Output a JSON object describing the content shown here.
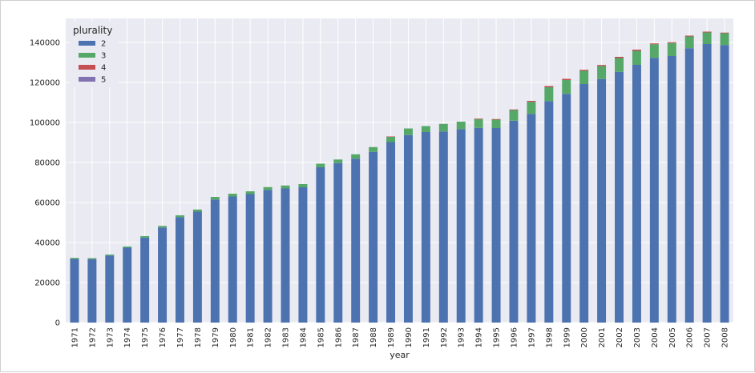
{
  "chart_data": {
    "type": "bar",
    "stacked": true,
    "title": "",
    "xlabel": "year",
    "ylabel": "",
    "ylim": [
      0,
      152000
    ],
    "yticks": [
      0,
      20000,
      40000,
      60000,
      80000,
      100000,
      120000,
      140000
    ],
    "grid": true,
    "legend": {
      "title": "plurality",
      "placement": "top-left"
    },
    "colors": {
      "2": "#4c72b0",
      "3": "#55a868",
      "4": "#c44e52",
      "5": "#8172b2",
      "background": "#eaeaf2",
      "grid": "#ffffff"
    },
    "categories": [
      "1971",
      "1972",
      "1973",
      "1974",
      "1975",
      "1976",
      "1977",
      "1978",
      "1979",
      "1980",
      "1981",
      "1982",
      "1983",
      "1984",
      "1985",
      "1986",
      "1987",
      "1988",
      "1989",
      "1990",
      "1991",
      "1992",
      "1993",
      "1994",
      "1995",
      "1996",
      "1997",
      "1998",
      "1999",
      "2000",
      "2001",
      "2002",
      "2003",
      "2004",
      "2005",
      "2006",
      "2007",
      "2008"
    ],
    "series": [
      {
        "name": "2",
        "values": [
          31800,
          31700,
          33500,
          37400,
          42500,
          47500,
          52700,
          55400,
          61500,
          63000,
          64200,
          66300,
          67000,
          67600,
          77600,
          79700,
          81900,
          85300,
          90200,
          93700,
          95200,
          95500,
          96700,
          97300,
          97200,
          100900,
          104300,
          110700,
          114300,
          119200,
          121700,
          125300,
          128800,
          132300,
          133200,
          137100,
          139200,
          138700
        ]
      },
      {
        "name": "3",
        "values": [
          500,
          500,
          500,
          600,
          700,
          800,
          900,
          1100,
          1300,
          1400,
          1400,
          1400,
          1500,
          1600,
          1800,
          1800,
          2200,
          2400,
          2600,
          3300,
          3000,
          3800,
          3700,
          4300,
          4200,
          5300,
          6000,
          6900,
          6900,
          6600,
          6500,
          6900,
          7000,
          6800,
          6500,
          5900,
          5800,
          5900
        ]
      },
      {
        "name": "4",
        "values": [
          0,
          0,
          0,
          0,
          0,
          0,
          0,
          0,
          0,
          0,
          0,
          0,
          0,
          0,
          0,
          0,
          0,
          0,
          200,
          0,
          0,
          0,
          0,
          300,
          300,
          300,
          500,
          600,
          600,
          500,
          500,
          600,
          600,
          400,
          400,
          400,
          400,
          300
        ]
      },
      {
        "name": "5",
        "values": [
          0,
          0,
          0,
          0,
          0,
          0,
          0,
          0,
          0,
          0,
          0,
          0,
          0,
          0,
          0,
          0,
          0,
          0,
          0,
          0,
          0,
          0,
          0,
          0,
          0,
          0,
          0,
          0,
          0,
          0,
          0,
          0,
          0,
          0,
          0,
          0,
          0,
          0
        ]
      }
    ]
  }
}
